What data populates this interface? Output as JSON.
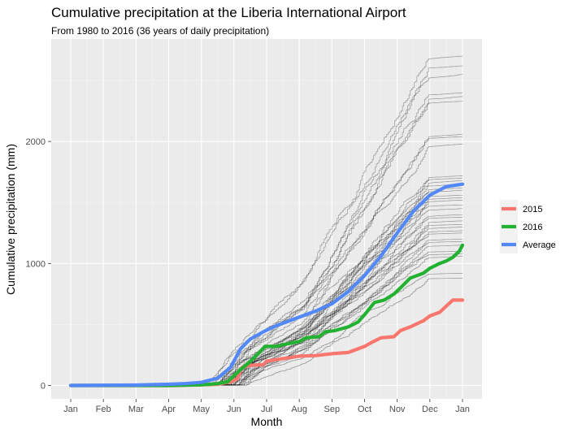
{
  "chart_data": {
    "type": "line",
    "title": "Cumulative precipitation at the Liberia International Airport",
    "subtitle": "From 1980 to 2016 (36 years of daily precipitation)",
    "xlabel": "Month",
    "ylabel": "Cumulative precipitation (mm)",
    "x_ticks": [
      "Jan",
      "Feb",
      "Mar",
      "Apr",
      "May",
      "Jun",
      "Jul",
      "Aug",
      "Sep",
      "Oct",
      "Nov",
      "Dec",
      "Jan"
    ],
    "x_domain": [
      0,
      12
    ],
    "y_ticks": [
      "0",
      "1000",
      "2000"
    ],
    "y_tick_values": [
      0,
      1000,
      2000
    ],
    "ylim": [
      -110,
      2840
    ],
    "grid": true,
    "legend_position": "right",
    "highlighted_series": [
      {
        "name": "2015",
        "color": "#F8766D",
        "points": [
          [
            0,
            0
          ],
          [
            3.2,
            0
          ],
          [
            4.0,
            5
          ],
          [
            4.5,
            10
          ],
          [
            4.9,
            30
          ],
          [
            5.1,
            55
          ],
          [
            5.25,
            150
          ],
          [
            5.5,
            165
          ],
          [
            5.9,
            170
          ],
          [
            6.0,
            200
          ],
          [
            6.5,
            220
          ],
          [
            7.0,
            240
          ],
          [
            7.5,
            245
          ],
          [
            8.0,
            260
          ],
          [
            8.5,
            270
          ],
          [
            8.8,
            300
          ],
          [
            9.0,
            320
          ],
          [
            9.2,
            350
          ],
          [
            9.5,
            390
          ],
          [
            9.9,
            400
          ],
          [
            10.1,
            450
          ],
          [
            10.4,
            480
          ],
          [
            10.8,
            530
          ],
          [
            11.0,
            570
          ],
          [
            11.3,
            600
          ],
          [
            11.5,
            650
          ],
          [
            11.7,
            700
          ],
          [
            12.0,
            700
          ]
        ]
      },
      {
        "name": "2016",
        "color": "#22B130",
        "points": [
          [
            0,
            0
          ],
          [
            3.0,
            0
          ],
          [
            4.0,
            5
          ],
          [
            4.5,
            15
          ],
          [
            4.8,
            30
          ],
          [
            5.0,
            80
          ],
          [
            5.2,
            130
          ],
          [
            5.45,
            185
          ],
          [
            5.7,
            250
          ],
          [
            5.95,
            320
          ],
          [
            6.3,
            320
          ],
          [
            6.6,
            340
          ],
          [
            7.0,
            360
          ],
          [
            7.2,
            390
          ],
          [
            7.6,
            400
          ],
          [
            7.8,
            440
          ],
          [
            8.1,
            450
          ],
          [
            8.5,
            480
          ],
          [
            8.8,
            520
          ],
          [
            9.0,
            580
          ],
          [
            9.3,
            680
          ],
          [
            9.6,
            700
          ],
          [
            9.9,
            750
          ],
          [
            10.1,
            800
          ],
          [
            10.4,
            880
          ],
          [
            10.8,
            920
          ],
          [
            11.0,
            960
          ],
          [
            11.3,
            1000
          ],
          [
            11.5,
            1020
          ],
          [
            11.7,
            1050
          ],
          [
            11.9,
            1100
          ],
          [
            12.0,
            1150
          ]
        ]
      },
      {
        "name": "Average",
        "color": "#5388F8",
        "points": [
          [
            0,
            0
          ],
          [
            2.0,
            3
          ],
          [
            3.0,
            10
          ],
          [
            3.5,
            15
          ],
          [
            4.0,
            25
          ],
          [
            4.5,
            60
          ],
          [
            4.9,
            150
          ],
          [
            5.2,
            300
          ],
          [
            5.5,
            380
          ],
          [
            5.9,
            440
          ],
          [
            6.3,
            490
          ],
          [
            6.7,
            530
          ],
          [
            7.0,
            560
          ],
          [
            7.5,
            610
          ],
          [
            8.0,
            670
          ],
          [
            8.5,
            770
          ],
          [
            9.0,
            900
          ],
          [
            9.5,
            1060
          ],
          [
            10.0,
            1250
          ],
          [
            10.5,
            1430
          ],
          [
            11.0,
            1560
          ],
          [
            11.5,
            1630
          ],
          [
            12.0,
            1650
          ]
        ]
      }
    ],
    "background_series": [
      {
        "final": 2700,
        "onset": 4.3,
        "rate": 1.6
      },
      {
        "final": 2620,
        "onset": 4.6,
        "rate": 2.2
      },
      {
        "final": 2550,
        "onset": 4.2,
        "rate": 1.4
      },
      {
        "final": 2400,
        "onset": 4.8,
        "rate": 2.5
      },
      {
        "final": 2370,
        "onset": 4.5,
        "rate": 1.8
      },
      {
        "final": 2330,
        "onset": 4.9,
        "rate": 2.1
      },
      {
        "final": 2060,
        "onset": 4.4,
        "rate": 1.7
      },
      {
        "final": 2040,
        "onset": 5.0,
        "rate": 2.3
      },
      {
        "final": 1980,
        "onset": 4.6,
        "rate": 1.5
      },
      {
        "final": 1720,
        "onset": 4.7,
        "rate": 1.9
      },
      {
        "final": 1700,
        "onset": 5.1,
        "rate": 2.4
      },
      {
        "final": 1680,
        "onset": 4.4,
        "rate": 1.6
      },
      {
        "final": 1650,
        "onset": 4.9,
        "rate": 2.0
      },
      {
        "final": 1620,
        "onset": 5.3,
        "rate": 2.6
      },
      {
        "final": 1600,
        "onset": 4.5,
        "rate": 1.7
      },
      {
        "final": 1560,
        "onset": 4.8,
        "rate": 2.2
      },
      {
        "final": 1540,
        "onset": 5.0,
        "rate": 1.9
      },
      {
        "final": 1520,
        "onset": 4.3,
        "rate": 1.5
      },
      {
        "final": 1480,
        "onset": 5.2,
        "rate": 2.3
      },
      {
        "final": 1450,
        "onset": 4.6,
        "rate": 1.8
      },
      {
        "final": 1400,
        "onset": 4.9,
        "rate": 2.1
      },
      {
        "final": 1380,
        "onset": 5.1,
        "rate": 2.5
      },
      {
        "final": 1350,
        "onset": 4.7,
        "rate": 1.6
      },
      {
        "final": 1320,
        "onset": 5.4,
        "rate": 2.7
      },
      {
        "final": 1300,
        "onset": 4.5,
        "rate": 2.0
      },
      {
        "final": 1270,
        "onset": 4.8,
        "rate": 1.7
      },
      {
        "final": 1250,
        "onset": 5.0,
        "rate": 2.2
      },
      {
        "final": 1200,
        "onset": 5.2,
        "rate": 1.9
      },
      {
        "final": 1180,
        "onset": 4.6,
        "rate": 2.4
      },
      {
        "final": 1150,
        "onset": 4.9,
        "rate": 1.8
      },
      {
        "final": 1100,
        "onset": 5.3,
        "rate": 2.6
      },
      {
        "final": 1080,
        "onset": 4.7,
        "rate": 2.0
      },
      {
        "final": 1060,
        "onset": 5.0,
        "rate": 1.6
      },
      {
        "final": 920,
        "onset": 5.1,
        "rate": 2.3
      },
      {
        "final": 880,
        "onset": 5.4,
        "rate": 2.8
      }
    ]
  }
}
